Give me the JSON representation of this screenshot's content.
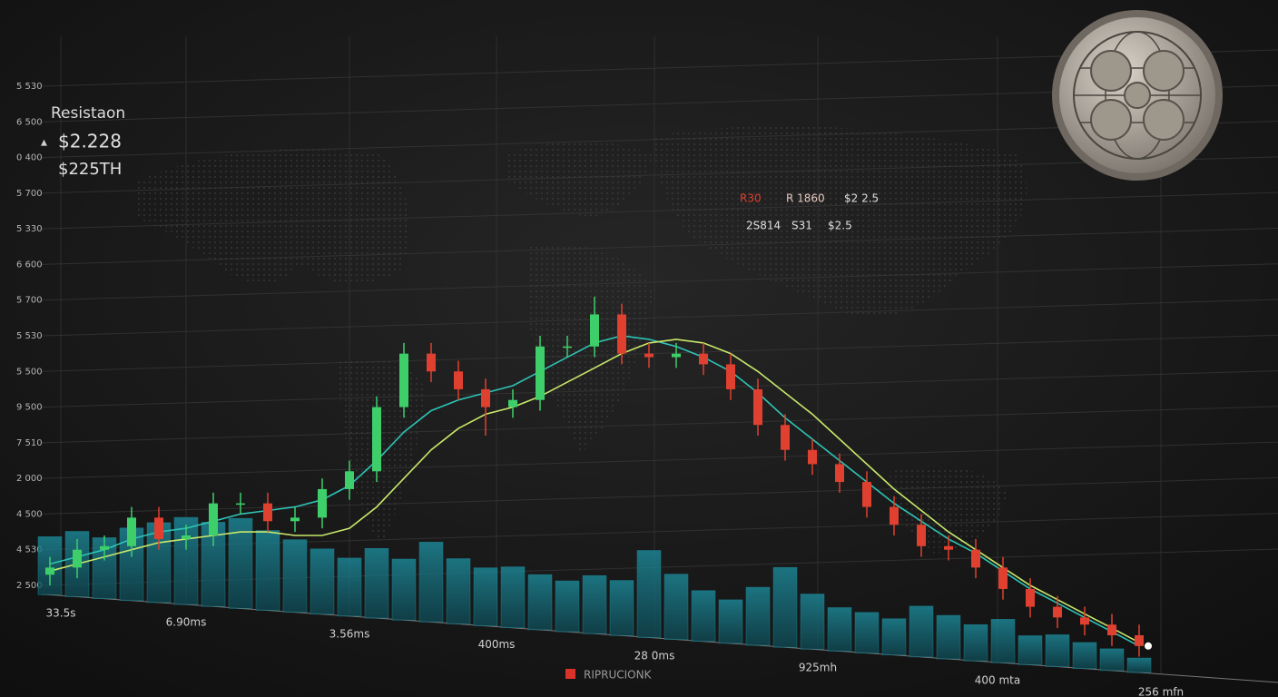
{
  "chart_data": {
    "type": "candlestick",
    "label": "Resistaon",
    "marker": "▲",
    "prices": [
      "$2.228",
      "$225TH"
    ],
    "annotations": [
      {
        "text": "R30",
        "color": "#e0402f"
      },
      {
        "text": "R 1860",
        "color": "#e8c8c0"
      },
      {
        "text": "$2 2.5",
        "color": "#e0e0e0"
      },
      {
        "text": "2S814",
        "color": "#e0e0e0"
      },
      {
        "text": "S31",
        "color": "#e0e0e0"
      },
      {
        "text": "$2.5",
        "color": "#e0e0e0"
      }
    ],
    "name": "RIPRUCIONK",
    "legend_color": "#d8322a",
    "up_color": "#3ecf6a",
    "down_color": "#e0402f",
    "x": [
      0,
      1,
      2,
      3,
      4,
      5,
      6,
      7,
      8,
      9,
      10,
      11,
      12,
      13,
      14,
      15,
      16,
      17,
      18,
      19,
      20,
      21,
      22,
      23,
      24,
      25,
      26,
      27,
      28,
      29,
      30,
      31,
      32,
      33,
      34,
      35,
      36,
      37,
      38,
      39,
      40
    ],
    "open": [
      0.3,
      0.5,
      1.0,
      1.1,
      1.9,
      1.3,
      1.4,
      2.3,
      2.3,
      1.8,
      1.9,
      2.7,
      3.2,
      5.0,
      6.5,
      6.0,
      5.5,
      5.0,
      5.2,
      6.7,
      6.7,
      7.6,
      6.5,
      6.4,
      6.5,
      6.2,
      5.5,
      4.5,
      3.8,
      3.4,
      2.9,
      2.2,
      1.7,
      1.1,
      1.0,
      0.5,
      -0.1,
      -0.6,
      -0.9,
      -1.1,
      -1.4
    ],
    "high": [
      0.8,
      1.3,
      1.4,
      2.2,
      2.2,
      1.7,
      2.6,
      2.6,
      2.6,
      2.2,
      3.0,
      3.5,
      5.3,
      6.8,
      6.8,
      6.3,
      5.8,
      5.5,
      7.0,
      7.0,
      8.1,
      7.9,
      6.8,
      6.8,
      6.8,
      6.5,
      5.8,
      4.8,
      4.1,
      3.7,
      3.2,
      2.5,
      2.0,
      1.4,
      1.3,
      0.8,
      0.2,
      -0.3,
      -0.6,
      -0.8,
      -1.1
    ],
    "low": [
      0.0,
      0.2,
      0.7,
      0.8,
      1.0,
      1.0,
      1.1,
      2.0,
      1.5,
      1.5,
      1.6,
      2.4,
      2.9,
      4.7,
      5.7,
      5.2,
      4.2,
      4.7,
      4.9,
      6.4,
      6.4,
      6.2,
      6.1,
      6.1,
      5.9,
      5.2,
      4.2,
      3.5,
      3.1,
      2.6,
      1.9,
      1.4,
      0.8,
      0.7,
      0.2,
      -0.4,
      -0.9,
      -1.2,
      -1.4,
      -1.7,
      -2.0
    ],
    "close": [
      0.5,
      1.0,
      1.1,
      1.9,
      1.3,
      1.4,
      2.3,
      2.3,
      1.8,
      1.9,
      2.7,
      3.2,
      5.0,
      6.5,
      6.0,
      5.5,
      5.0,
      5.2,
      6.7,
      6.7,
      7.6,
      6.5,
      6.4,
      6.5,
      6.2,
      5.5,
      4.5,
      3.8,
      3.4,
      2.9,
      2.2,
      1.7,
      1.1,
      1.0,
      0.5,
      -0.1,
      -0.6,
      -0.9,
      -1.1,
      -1.4,
      -1.7
    ],
    "lines": [
      {
        "color": "#2ec4b6",
        "values": [
          0.6,
          0.8,
          1.0,
          1.3,
          1.5,
          1.6,
          1.8,
          2.0,
          2.1,
          2.2,
          2.4,
          2.8,
          3.5,
          4.3,
          4.9,
          5.2,
          5.4,
          5.6,
          6.0,
          6.4,
          6.8,
          7.0,
          6.9,
          6.7,
          6.4,
          6.0,
          5.4,
          4.7,
          4.1,
          3.5,
          2.9,
          2.3,
          1.8,
          1.3,
          0.9,
          0.4,
          -0.1,
          -0.5,
          -0.9,
          -1.3,
          -1.7
        ]
      },
      {
        "color": "#c8e86a",
        "values": [
          0.4,
          0.6,
          0.8,
          1.0,
          1.2,
          1.3,
          1.4,
          1.5,
          1.5,
          1.4,
          1.4,
          1.6,
          2.2,
          3.0,
          3.8,
          4.4,
          4.8,
          5.0,
          5.3,
          5.7,
          6.1,
          6.5,
          6.8,
          6.9,
          6.8,
          6.5,
          6.0,
          5.4,
          4.8,
          4.1,
          3.4,
          2.7,
          2.1,
          1.5,
          1.0,
          0.5,
          0.0,
          -0.4,
          -0.8,
          -1.2,
          -1.6
        ]
      }
    ],
    "volume": {
      "color": "#1d8a9a",
      "vlim": [
        0,
        100
      ],
      "values": [
        40,
        45,
        42,
        50,
        55,
        60,
        58,
        62,
        55,
        50,
        45,
        40,
        48,
        42,
        55,
        45,
        40,
        42,
        38,
        35,
        40,
        38,
        60,
        45,
        35,
        30,
        40,
        55,
        38,
        30,
        28,
        25,
        35,
        30,
        25,
        30,
        20,
        22,
        18,
        15,
        10
      ]
    },
    "xlim": [
      -0.2,
      41
    ],
    "xticks": [
      {
        "value": 0.4,
        "label": "33.5s"
      },
      {
        "value": 5.0,
        "label": "6.90ms"
      },
      {
        "value": 11.0,
        "label": "3.56ms"
      },
      {
        "value": 16.4,
        "label": "400ms"
      },
      {
        "value": 22.2,
        "label": "28 0ms"
      },
      {
        "value": 28.2,
        "label": "925mh"
      },
      {
        "value": 34.8,
        "label": "400 mta"
      },
      {
        "value": 40.8,
        "label": "256 mfn"
      }
    ],
    "ylim": [
      -3,
      14
    ],
    "yticks": [
      {
        "value": 0,
        "label": "2 500"
      },
      {
        "value": 1,
        "label": "4 530"
      },
      {
        "value": 2,
        "label": "4 500"
      },
      {
        "value": 3,
        "label": "2 000"
      },
      {
        "value": 4,
        "label": "7 510"
      },
      {
        "value": 5,
        "label": "9 500"
      },
      {
        "value": 6,
        "label": "5 500"
      },
      {
        "value": 7,
        "label": "5 530"
      },
      {
        "value": 8,
        "label": "5 700"
      },
      {
        "value": 9,
        "label": "6 600"
      },
      {
        "value": 10,
        "label": "5 330"
      },
      {
        "value": 11,
        "label": "5 700"
      },
      {
        "value": 12,
        "label": "0 400"
      },
      {
        "value": 13,
        "label": "6 500"
      },
      {
        "value": 14,
        "label": "5 530"
      }
    ],
    "grid": true
  }
}
